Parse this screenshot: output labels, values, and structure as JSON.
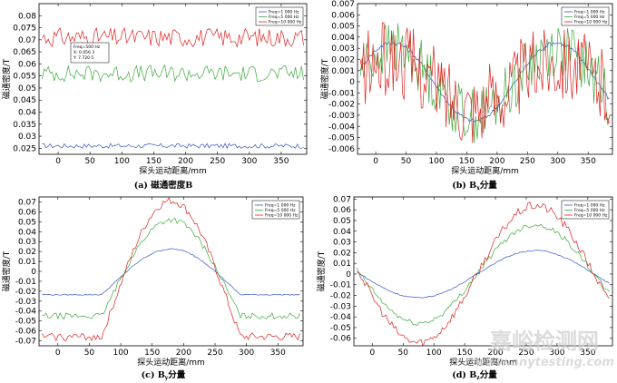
{
  "chart_data": [
    {
      "type": "line",
      "title": "",
      "caption": "(a) 磁通密度B",
      "xlabel": "探头运动距离/mm",
      "ylabel": "磁通密度/T",
      "xlim": [
        -30,
        390
      ],
      "ylim": [
        0.0225,
        0.085
      ],
      "xticks": [
        0,
        50,
        100,
        150,
        200,
        250,
        300,
        350
      ],
      "yticks": [
        0.025,
        0.03,
        0.035,
        0.04,
        0.045,
        0.05,
        0.055,
        0.06,
        0.065,
        0.07,
        0.075,
        0.08
      ],
      "series": [
        {
          "name": "Freq=1 000 Hz",
          "color": "#3355cc",
          "shape": "flat",
          "base": 0.026,
          "amp": 0.0,
          "phase": 0,
          "noise": 0.001
        },
        {
          "name": "Freq=5 000 Hz",
          "color": "#3caa3c",
          "shape": "flat",
          "base": 0.056,
          "amp": 0.0,
          "phase": 0,
          "noise": 0.0035
        },
        {
          "name": "Freq=10 000 Hz",
          "color": "#e02020",
          "shape": "flat",
          "base": 0.071,
          "amp": 0.0,
          "phase": 0,
          "noise": 0.004
        }
      ],
      "legend": "top-right",
      "annotation": {
        "lines": [
          "Freq=500 Hz",
          "X: 0.056 3",
          "Y: 7.720 5"
        ]
      }
    },
    {
      "type": "line",
      "caption": "(b) Bx分量",
      "caption_main": "(b) B",
      "caption_sub": "x",
      "caption_tail": "分量",
      "xlabel": "探头运动距离/mm",
      "ylabel": "磁通密度/T",
      "xlim": [
        -30,
        390
      ],
      "ylim": [
        -0.0065,
        0.007
      ],
      "xticks": [
        0,
        50,
        100,
        150,
        200,
        250,
        300,
        350
      ],
      "yticks": [
        -0.006,
        -0.005,
        -0.004,
        -0.003,
        -0.002,
        -0.001,
        0,
        0.001,
        0.002,
        0.003,
        0.004,
        0.005,
        0.006,
        0.007
      ],
      "series": [
        {
          "name": "Freq=1 000 Hz",
          "color": "#3355cc",
          "shape": "sin",
          "base": 0,
          "amp": 0.0035,
          "phase": 40,
          "noise": 0.0002
        },
        {
          "name": "Freq=5 000 Hz",
          "color": "#3caa3c",
          "shape": "sin",
          "base": 0,
          "amp": 0.003,
          "phase": 40,
          "noise": 0.0025
        },
        {
          "name": "Freq=10 000 Hz",
          "color": "#e02020",
          "shape": "sin",
          "base": 0,
          "amp": 0.002,
          "phase": 40,
          "noise": 0.0035
        }
      ],
      "legend": "top-right"
    },
    {
      "type": "line",
      "caption": "(c) By分量",
      "caption_main": "(c) B",
      "caption_sub": "y",
      "caption_tail": "分量",
      "xlabel": "探头运动距离/mm",
      "ylabel": "磁通密度/T",
      "xlim": [
        -30,
        390
      ],
      "ylim": [
        -0.075,
        0.075
      ],
      "xticks": [
        0,
        50,
        100,
        150,
        200,
        250,
        300,
        350
      ],
      "yticks": [
        -0.07,
        -0.06,
        -0.05,
        -0.04,
        -0.03,
        -0.02,
        -0.01,
        0,
        0.01,
        0.02,
        0.03,
        0.04,
        0.05,
        0.06,
        0.07
      ],
      "series": [
        {
          "name": "Freq=1 000 Hz",
          "color": "#3355cc",
          "shape": "bell",
          "base": -0.0235,
          "amp": 0.046,
          "phase": 180,
          "noise": 0.0006
        },
        {
          "name": "Freq=5 000 Hz",
          "color": "#3caa3c",
          "shape": "bell",
          "base": -0.045,
          "amp": 0.097,
          "phase": 180,
          "noise": 0.003
        },
        {
          "name": "Freq=10 000 Hz",
          "color": "#e02020",
          "shape": "bell",
          "base": -0.066,
          "amp": 0.137,
          "phase": 180,
          "noise": 0.004
        }
      ],
      "legend": "top-right"
    },
    {
      "type": "line",
      "caption": "(d) Bz分量",
      "caption_main": "(d) B",
      "caption_sub": "z",
      "caption_tail": "分量",
      "xlabel": "探头运动距离/mm",
      "ylabel": "磁通密度/T",
      "xlim": [
        -30,
        390
      ],
      "ylim": [
        -0.067,
        0.072
      ],
      "xticks": [
        0,
        50,
        100,
        150,
        200,
        250,
        300,
        350
      ],
      "yticks": [
        -0.06,
        -0.05,
        -0.04,
        -0.03,
        -0.02,
        -0.01,
        0,
        0.01,
        0.02,
        0.03,
        0.04,
        0.05,
        0.06,
        0.07
      ],
      "series": [
        {
          "name": "Freq=1 000 Hz",
          "color": "#3355cc",
          "shape": "cos2",
          "base": 0,
          "amp": 0.022,
          "phase": 0,
          "noise": 0.0005
        },
        {
          "name": "Freq=5 000 Hz",
          "color": "#3caa3c",
          "shape": "cos2",
          "base": 0,
          "amp": 0.046,
          "phase": 0,
          "noise": 0.0025
        },
        {
          "name": "Freq=10 000 Hz",
          "color": "#e02020",
          "shape": "cos2",
          "base": 0,
          "amp": 0.064,
          "phase": 0,
          "noise": 0.004
        }
      ],
      "legend": "top-right"
    }
  ],
  "watermark": {
    "text": "嘉峪检测网",
    "url": "www.anytesting.com"
  }
}
